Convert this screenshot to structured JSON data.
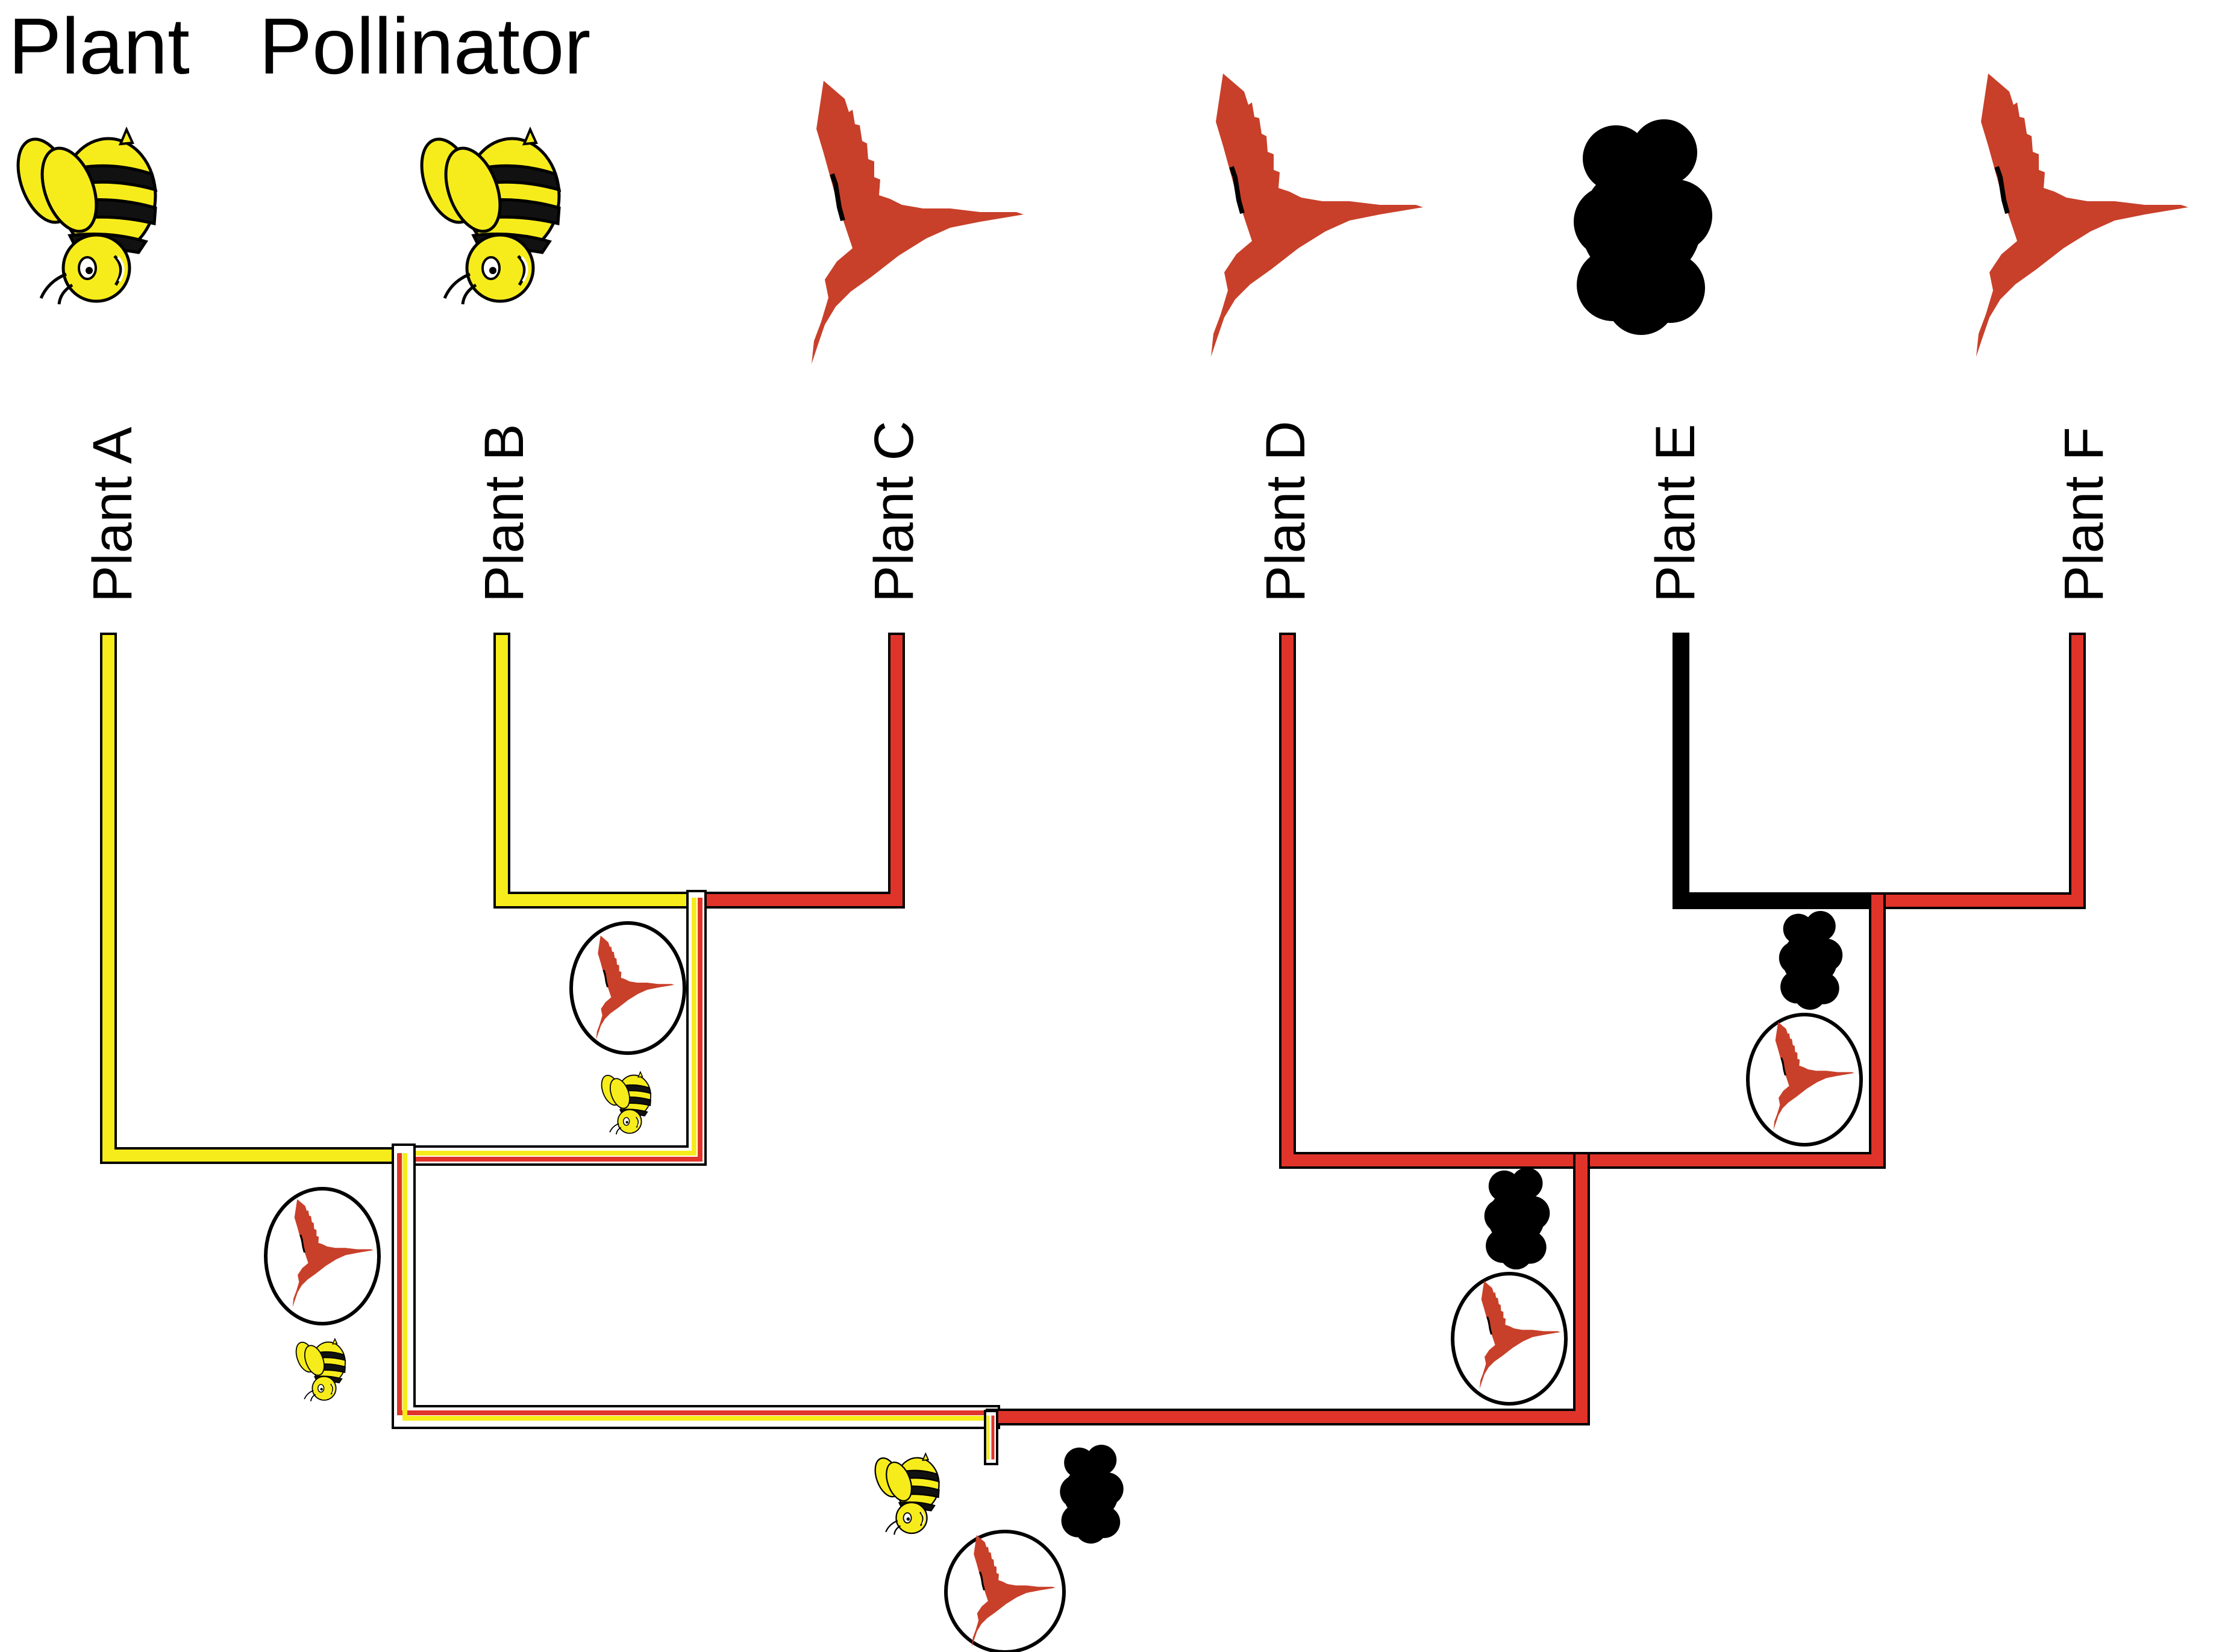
{
  "header": {
    "plant_label": "Plant",
    "pollinator_label": "Pollinator"
  },
  "taxa": [
    {
      "label": "Plant A",
      "pollinator": "bee"
    },
    {
      "label": "Plant B",
      "pollinator": "bee"
    },
    {
      "label": "Plant C",
      "pollinator": "hummingbird"
    },
    {
      "label": "Plant D",
      "pollinator": "hummingbird"
    },
    {
      "label": "Plant E",
      "pollinator": "black-blob"
    },
    {
      "label": "Plant F",
      "pollinator": "hummingbird"
    }
  ],
  "ancestral_states": [
    {
      "node": "Plant B + Plant C",
      "states": [
        "hummingbird",
        "bee"
      ]
    },
    {
      "node": "Plant A + (Plant B, Plant C)",
      "states": [
        "hummingbird",
        "bee"
      ]
    },
    {
      "node": "root",
      "states": [
        "bee",
        "hummingbird",
        "black-blob"
      ]
    },
    {
      "node": "Plant D + (Plant E, Plant F)",
      "states": [
        "black-blob",
        "hummingbird"
      ]
    },
    {
      "node": "Plant E + Plant F",
      "states": [
        "black-blob",
        "hummingbird"
      ]
    }
  ],
  "colors": {
    "bee": "#f7ec1b",
    "hummingbird": "#e0342a",
    "bird_icon": "#c8402a",
    "black-blob": "#000000",
    "outline": "#000000"
  },
  "icons": {
    "bee": "bee-icon",
    "hummingbird": "hummingbird-icon",
    "black-blob": "black-blob-icon"
  }
}
